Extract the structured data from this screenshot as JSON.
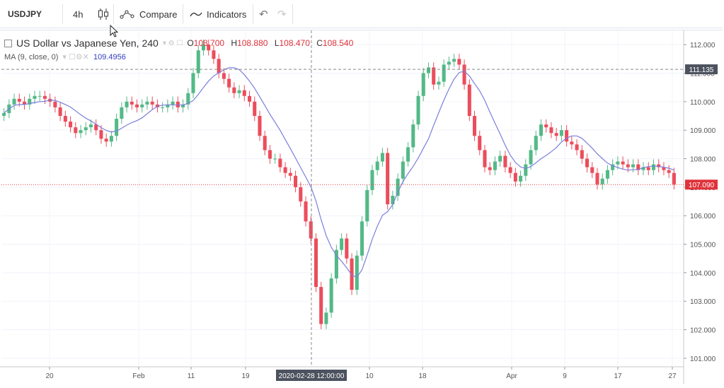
{
  "toolbar": {
    "symbol": "USDJPY",
    "interval": "4h",
    "compare_label": "Compare",
    "indicators_label": "Indicators"
  },
  "legend": {
    "title": "US Dollar vs Japanese Yen, 240",
    "o_label": "O",
    "o_value": "108.700",
    "h_label": "H",
    "h_value": "108.880",
    "l_label": "L",
    "l_value": "108.470",
    "c_label": "C",
    "c_value": "108.540",
    "ma_label": "MA (9, close, 0)",
    "ma_value": "109.4956"
  },
  "colors": {
    "up": "#53b987",
    "down": "#eb4d5c",
    "ma": "#7b7fdc",
    "last_price": "#e0323a",
    "crosshair_label_bg": "#4c525e"
  },
  "crosshair": {
    "time_label": "2020-02-28 12:00:00",
    "price_label": "111.135"
  },
  "chart_data": {
    "type": "candlestick",
    "y_ticks": [
      "112.000",
      "111.000",
      "110.000",
      "109.000",
      "108.000",
      "107.000",
      "106.000",
      "105.000",
      "104.000",
      "103.000",
      "102.000",
      "101.000"
    ],
    "x_ticks": [
      "20",
      "Feb",
      "11",
      "19",
      "10",
      "18",
      "Apr",
      "9",
      "17",
      "27"
    ],
    "ylim": [
      100.7,
      112.5
    ],
    "last_price": "107.090",
    "series": [
      {
        "name": "Close",
        "values": [
          109.6,
          109.9,
          110.1,
          110.0,
          109.9,
          110.1,
          110.2,
          110.2,
          110.1,
          110.0,
          109.8,
          109.5,
          109.3,
          109.1,
          108.9,
          109.0,
          109.1,
          109.2,
          109.0,
          108.7,
          108.6,
          108.8,
          109.4,
          109.8,
          110.0,
          109.9,
          109.8,
          109.9,
          110.0,
          109.9,
          109.8,
          109.8,
          109.9,
          110.0,
          109.8,
          109.9,
          110.3,
          111.0,
          111.8,
          112.0,
          111.8,
          111.5,
          111.0,
          110.8,
          110.5,
          110.3,
          110.4,
          110.2,
          110.0,
          109.5,
          108.8,
          108.3,
          108.0,
          108.0,
          107.7,
          107.5,
          107.4,
          107.0,
          106.5,
          105.8,
          105.2,
          103.5,
          102.2,
          102.6,
          103.8,
          104.8,
          105.2,
          104.5,
          103.4,
          104.6,
          105.8,
          106.9,
          107.6,
          107.9,
          108.2,
          106.4,
          106.7,
          107.3,
          107.9,
          108.4,
          109.2,
          110.2,
          111.0,
          111.2,
          110.6,
          110.7,
          111.3,
          111.4,
          111.5,
          111.3,
          110.6,
          109.5,
          108.8,
          108.3,
          107.7,
          107.6,
          107.9,
          108.1,
          107.7,
          107.5,
          107.2,
          107.4,
          107.8,
          108.3,
          108.8,
          109.2,
          109.1,
          108.9,
          108.8,
          109.0,
          108.6,
          108.5,
          108.3,
          108.0,
          107.7,
          107.5,
          107.1,
          107.3,
          107.6,
          107.8,
          107.9,
          107.8,
          107.7,
          107.8,
          107.6,
          107.7,
          107.6,
          107.8,
          107.7,
          107.6,
          107.5,
          107.1
        ]
      }
    ]
  }
}
